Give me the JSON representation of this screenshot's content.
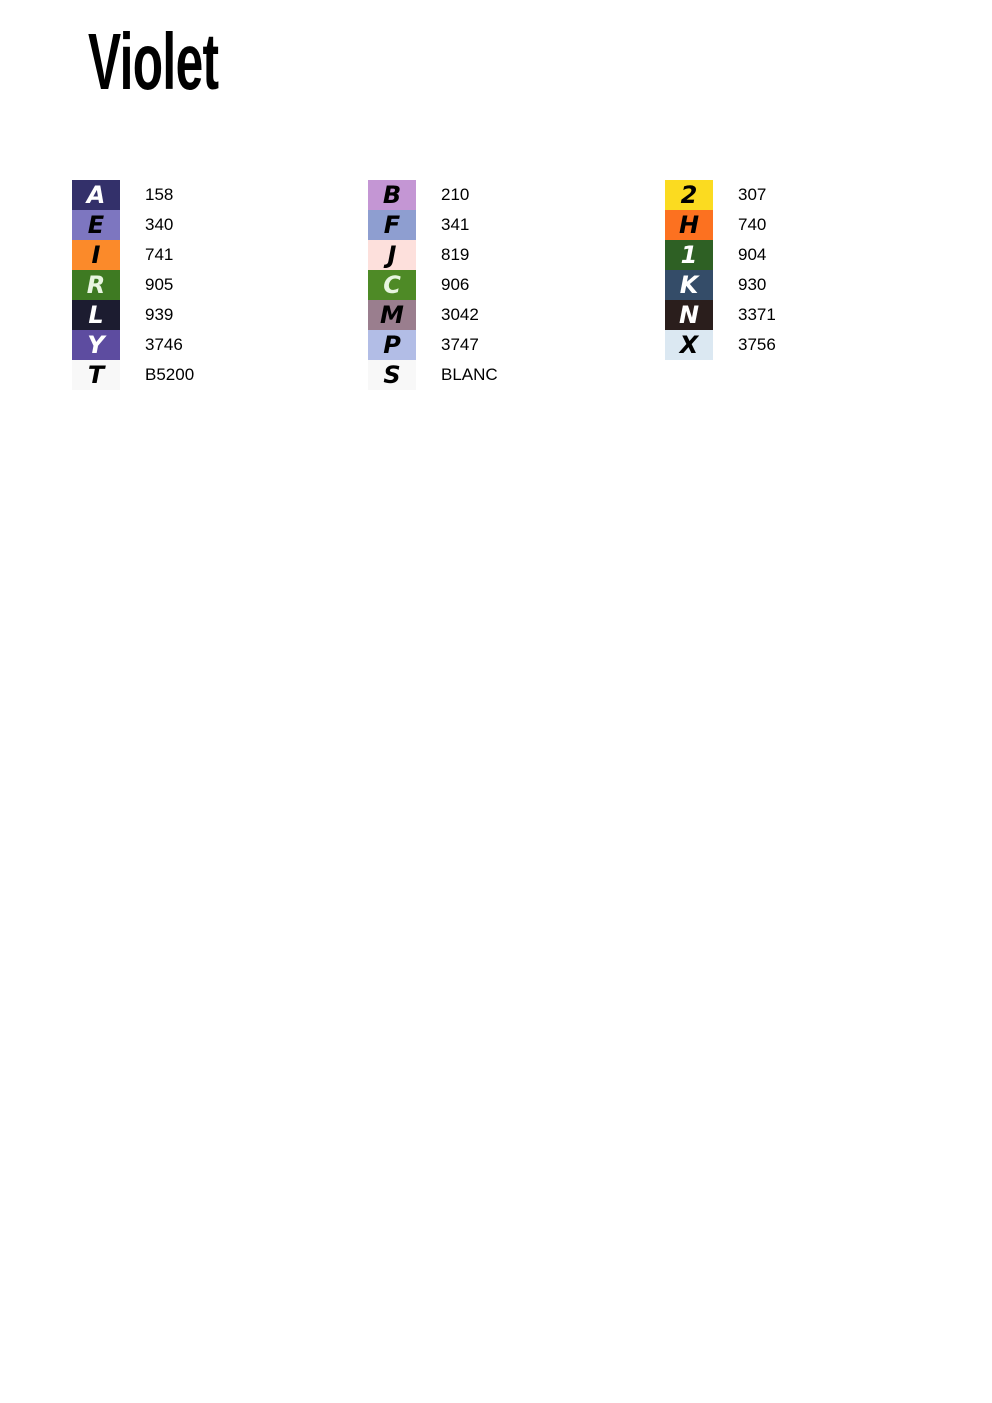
{
  "title": "Violet",
  "columns": [
    [
      {
        "symbol": "A",
        "code": "158",
        "color": "#33306a",
        "symbol_color": "#ffffff"
      },
      {
        "symbol": "E",
        "code": "340",
        "color": "#7d76c0",
        "symbol_color": "#000000"
      },
      {
        "symbol": "I",
        "code": "741",
        "color": "#fb8a2a",
        "symbol_color": "#000000"
      },
      {
        "symbol": "R",
        "code": "905",
        "color": "#3e7a22",
        "symbol_color": "#e8f5e0"
      },
      {
        "symbol": "L",
        "code": "939",
        "color": "#1c1c30",
        "symbol_color": "#ffffff"
      },
      {
        "symbol": "Y",
        "code": "3746",
        "color": "#5d4ca0",
        "symbol_color": "#ffffff"
      },
      {
        "symbol": "T",
        "code": "B5200",
        "color": "#f8f8f8",
        "symbol_color": "#000000"
      }
    ],
    [
      {
        "symbol": "B",
        "code": "210",
        "color": "#c496d4",
        "symbol_color": "#000000"
      },
      {
        "symbol": "F",
        "code": "341",
        "color": "#8e9ed0",
        "symbol_color": "#000000"
      },
      {
        "symbol": "J",
        "code": "819",
        "color": "#fde0dc",
        "symbol_color": "#000000"
      },
      {
        "symbol": "C",
        "code": "906",
        "color": "#4e8a26",
        "symbol_color": "#e8f5e0"
      },
      {
        "symbol": "M",
        "code": "3042",
        "color": "#9a7e8e",
        "symbol_color": "#000000"
      },
      {
        "symbol": "P",
        "code": "3747",
        "color": "#b2bde6",
        "symbol_color": "#000000"
      },
      {
        "symbol": "S",
        "code": "BLANC",
        "color": "#f8f8f8",
        "symbol_color": "#000000"
      }
    ],
    [
      {
        "symbol": "2",
        "code": "307",
        "color": "#fbdb20",
        "symbol_color": "#000000"
      },
      {
        "symbol": "H",
        "code": "740",
        "color": "#fc7120",
        "symbol_color": "#000000"
      },
      {
        "symbol": "1",
        "code": "904",
        "color": "#2e6024",
        "symbol_color": "#ffffff"
      },
      {
        "symbol": "K",
        "code": "930",
        "color": "#344c68",
        "symbol_color": "#ffffff"
      },
      {
        "symbol": "N",
        "code": "3371",
        "color": "#2a1e1c",
        "symbol_color": "#ffffff"
      },
      {
        "symbol": "X",
        "code": "3756",
        "color": "#dbe8f2",
        "symbol_color": "#000000"
      }
    ]
  ]
}
